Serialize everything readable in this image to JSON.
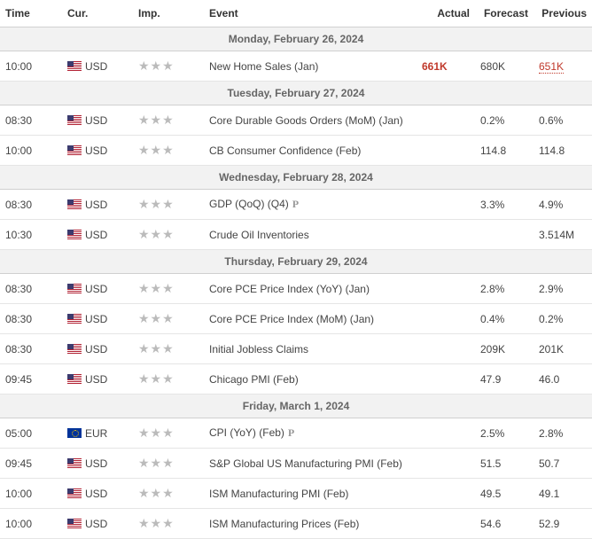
{
  "columns": {
    "time": "Time",
    "cur": "Cur.",
    "imp": "Imp.",
    "event": "Event",
    "actual": "Actual",
    "forecast": "Forecast",
    "previous": "Previous"
  },
  "colors": {
    "actual_red": "#c0392b",
    "text": "#444444",
    "date_row_bg": "#f2f2f2",
    "border": "#e5e5e5",
    "star": "#bbbbbb"
  },
  "days": [
    {
      "label": "Monday, February 26, 2024",
      "rows": [
        {
          "time": "10:00",
          "cur": "USD",
          "flag": "us",
          "stars": 3,
          "event": "New Home Sales (Jan)",
          "p": false,
          "actual": "661K",
          "actual_style": "red",
          "forecast": "680K",
          "previous": "651K",
          "prev_link": true
        }
      ]
    },
    {
      "label": "Tuesday, February 27, 2024",
      "rows": [
        {
          "time": "08:30",
          "cur": "USD",
          "flag": "us",
          "stars": 3,
          "event": "Core Durable Goods Orders (MoM) (Jan)",
          "p": false,
          "actual": "",
          "forecast": "0.2%",
          "previous": "0.6%"
        },
        {
          "time": "10:00",
          "cur": "USD",
          "flag": "us",
          "stars": 3,
          "event": "CB Consumer Confidence (Feb)",
          "p": false,
          "actual": "",
          "forecast": "114.8",
          "previous": "114.8"
        }
      ]
    },
    {
      "label": "Wednesday, February 28, 2024",
      "rows": [
        {
          "time": "08:30",
          "cur": "USD",
          "flag": "us",
          "stars": 3,
          "event": "GDP (QoQ) (Q4)",
          "p": true,
          "actual": "",
          "forecast": "3.3%",
          "previous": "4.9%"
        },
        {
          "time": "10:30",
          "cur": "USD",
          "flag": "us",
          "stars": 3,
          "event": "Crude Oil Inventories",
          "p": false,
          "actual": "",
          "forecast": "",
          "previous": "3.514M"
        }
      ]
    },
    {
      "label": "Thursday, February 29, 2024",
      "rows": [
        {
          "time": "08:30",
          "cur": "USD",
          "flag": "us",
          "stars": 3,
          "event": "Core PCE Price Index (YoY) (Jan)",
          "p": false,
          "actual": "",
          "forecast": "2.8%",
          "previous": "2.9%"
        },
        {
          "time": "08:30",
          "cur": "USD",
          "flag": "us",
          "stars": 3,
          "event": "Core PCE Price Index (MoM) (Jan)",
          "p": false,
          "actual": "",
          "forecast": "0.4%",
          "previous": "0.2%"
        },
        {
          "time": "08:30",
          "cur": "USD",
          "flag": "us",
          "stars": 3,
          "event": "Initial Jobless Claims",
          "p": false,
          "actual": "",
          "forecast": "209K",
          "previous": "201K"
        },
        {
          "time": "09:45",
          "cur": "USD",
          "flag": "us",
          "stars": 3,
          "event": "Chicago PMI (Feb)",
          "p": false,
          "actual": "",
          "forecast": "47.9",
          "previous": "46.0"
        }
      ]
    },
    {
      "label": "Friday, March 1, 2024",
      "rows": [
        {
          "time": "05:00",
          "cur": "EUR",
          "flag": "eu",
          "stars": 3,
          "event": "CPI (YoY) (Feb)",
          "p": true,
          "actual": "",
          "forecast": "2.5%",
          "previous": "2.8%"
        },
        {
          "time": "09:45",
          "cur": "USD",
          "flag": "us",
          "stars": 3,
          "event": "S&P Global US Manufacturing PMI (Feb)",
          "p": false,
          "actual": "",
          "forecast": "51.5",
          "previous": "50.7"
        },
        {
          "time": "10:00",
          "cur": "USD",
          "flag": "us",
          "stars": 3,
          "event": "ISM Manufacturing PMI (Feb)",
          "p": false,
          "actual": "",
          "forecast": "49.5",
          "previous": "49.1"
        },
        {
          "time": "10:00",
          "cur": "USD",
          "flag": "us",
          "stars": 3,
          "event": "ISM Manufacturing Prices (Feb)",
          "p": false,
          "actual": "",
          "forecast": "54.6",
          "previous": "52.9"
        }
      ]
    }
  ]
}
